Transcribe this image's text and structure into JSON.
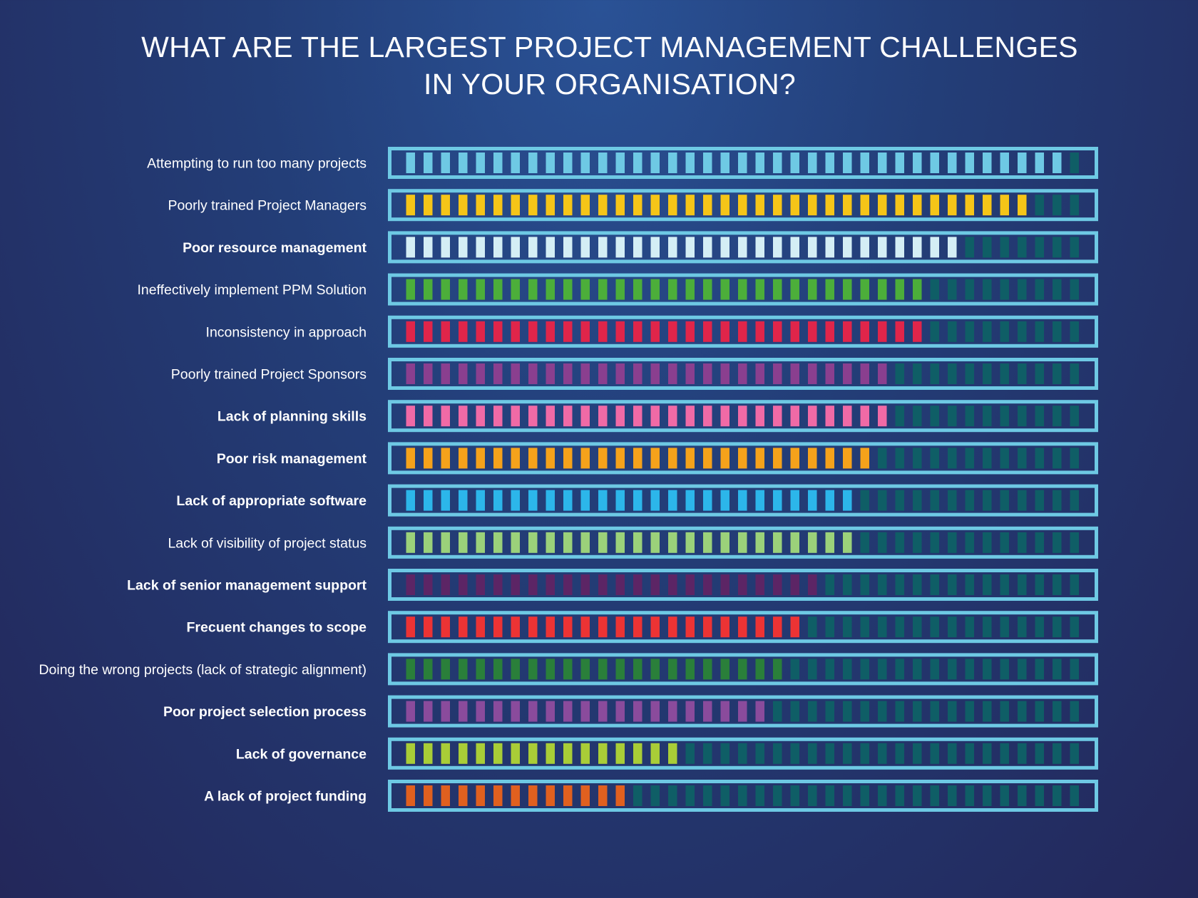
{
  "title": {
    "line1": "WHAT ARE THE LARGEST PROJECT MANAGEMENT CHALLENGES",
    "line2": "IN YOUR ORGANISATION?"
  },
  "chart_data": {
    "type": "bar",
    "title": "WHAT ARE THE LARGEST PROJECT MANAGEMENT CHALLENGES IN YOUR ORGANISATION?",
    "total_segments": 39,
    "empty_color": "#0f5e66",
    "frame_color": "#6ec9e4",
    "xlabel": "",
    "ylabel": "",
    "categories": [
      "Attempting to run too many projects",
      "Poorly trained Project Managers",
      "Poor resource management",
      "Ineffectively implement PPM Solution",
      "Inconsistency in approach",
      "Poorly trained Project Sponsors",
      "Lack of planning skills",
      "Poor risk management",
      "Lack of appropriate software",
      "Lack of visibility of project status",
      "Lack of senior management support",
      "Frecuent changes to scope",
      "Doing the wrong  projects (lack of strategic alignment)",
      "Poor project selection process",
      "Lack of governance",
      "A lack of project funding"
    ],
    "values": [
      38,
      36,
      32,
      30,
      30,
      28,
      28,
      27,
      26,
      26,
      24,
      23,
      22,
      21,
      16,
      13
    ],
    "colors": [
      "#6ec9e4",
      "#f5c518",
      "#d4eef5",
      "#4cae3a",
      "#e0254a",
      "#8a3f8f",
      "#f06aa6",
      "#f5a21b",
      "#2cb6ea",
      "#9bd17a",
      "#5c2565",
      "#ec3334",
      "#2a7f3a",
      "#8a4b9c",
      "#a9cd37",
      "#e0601f"
    ],
    "bold": [
      false,
      false,
      true,
      false,
      false,
      false,
      true,
      true,
      true,
      false,
      true,
      true,
      false,
      true,
      true,
      true
    ]
  }
}
